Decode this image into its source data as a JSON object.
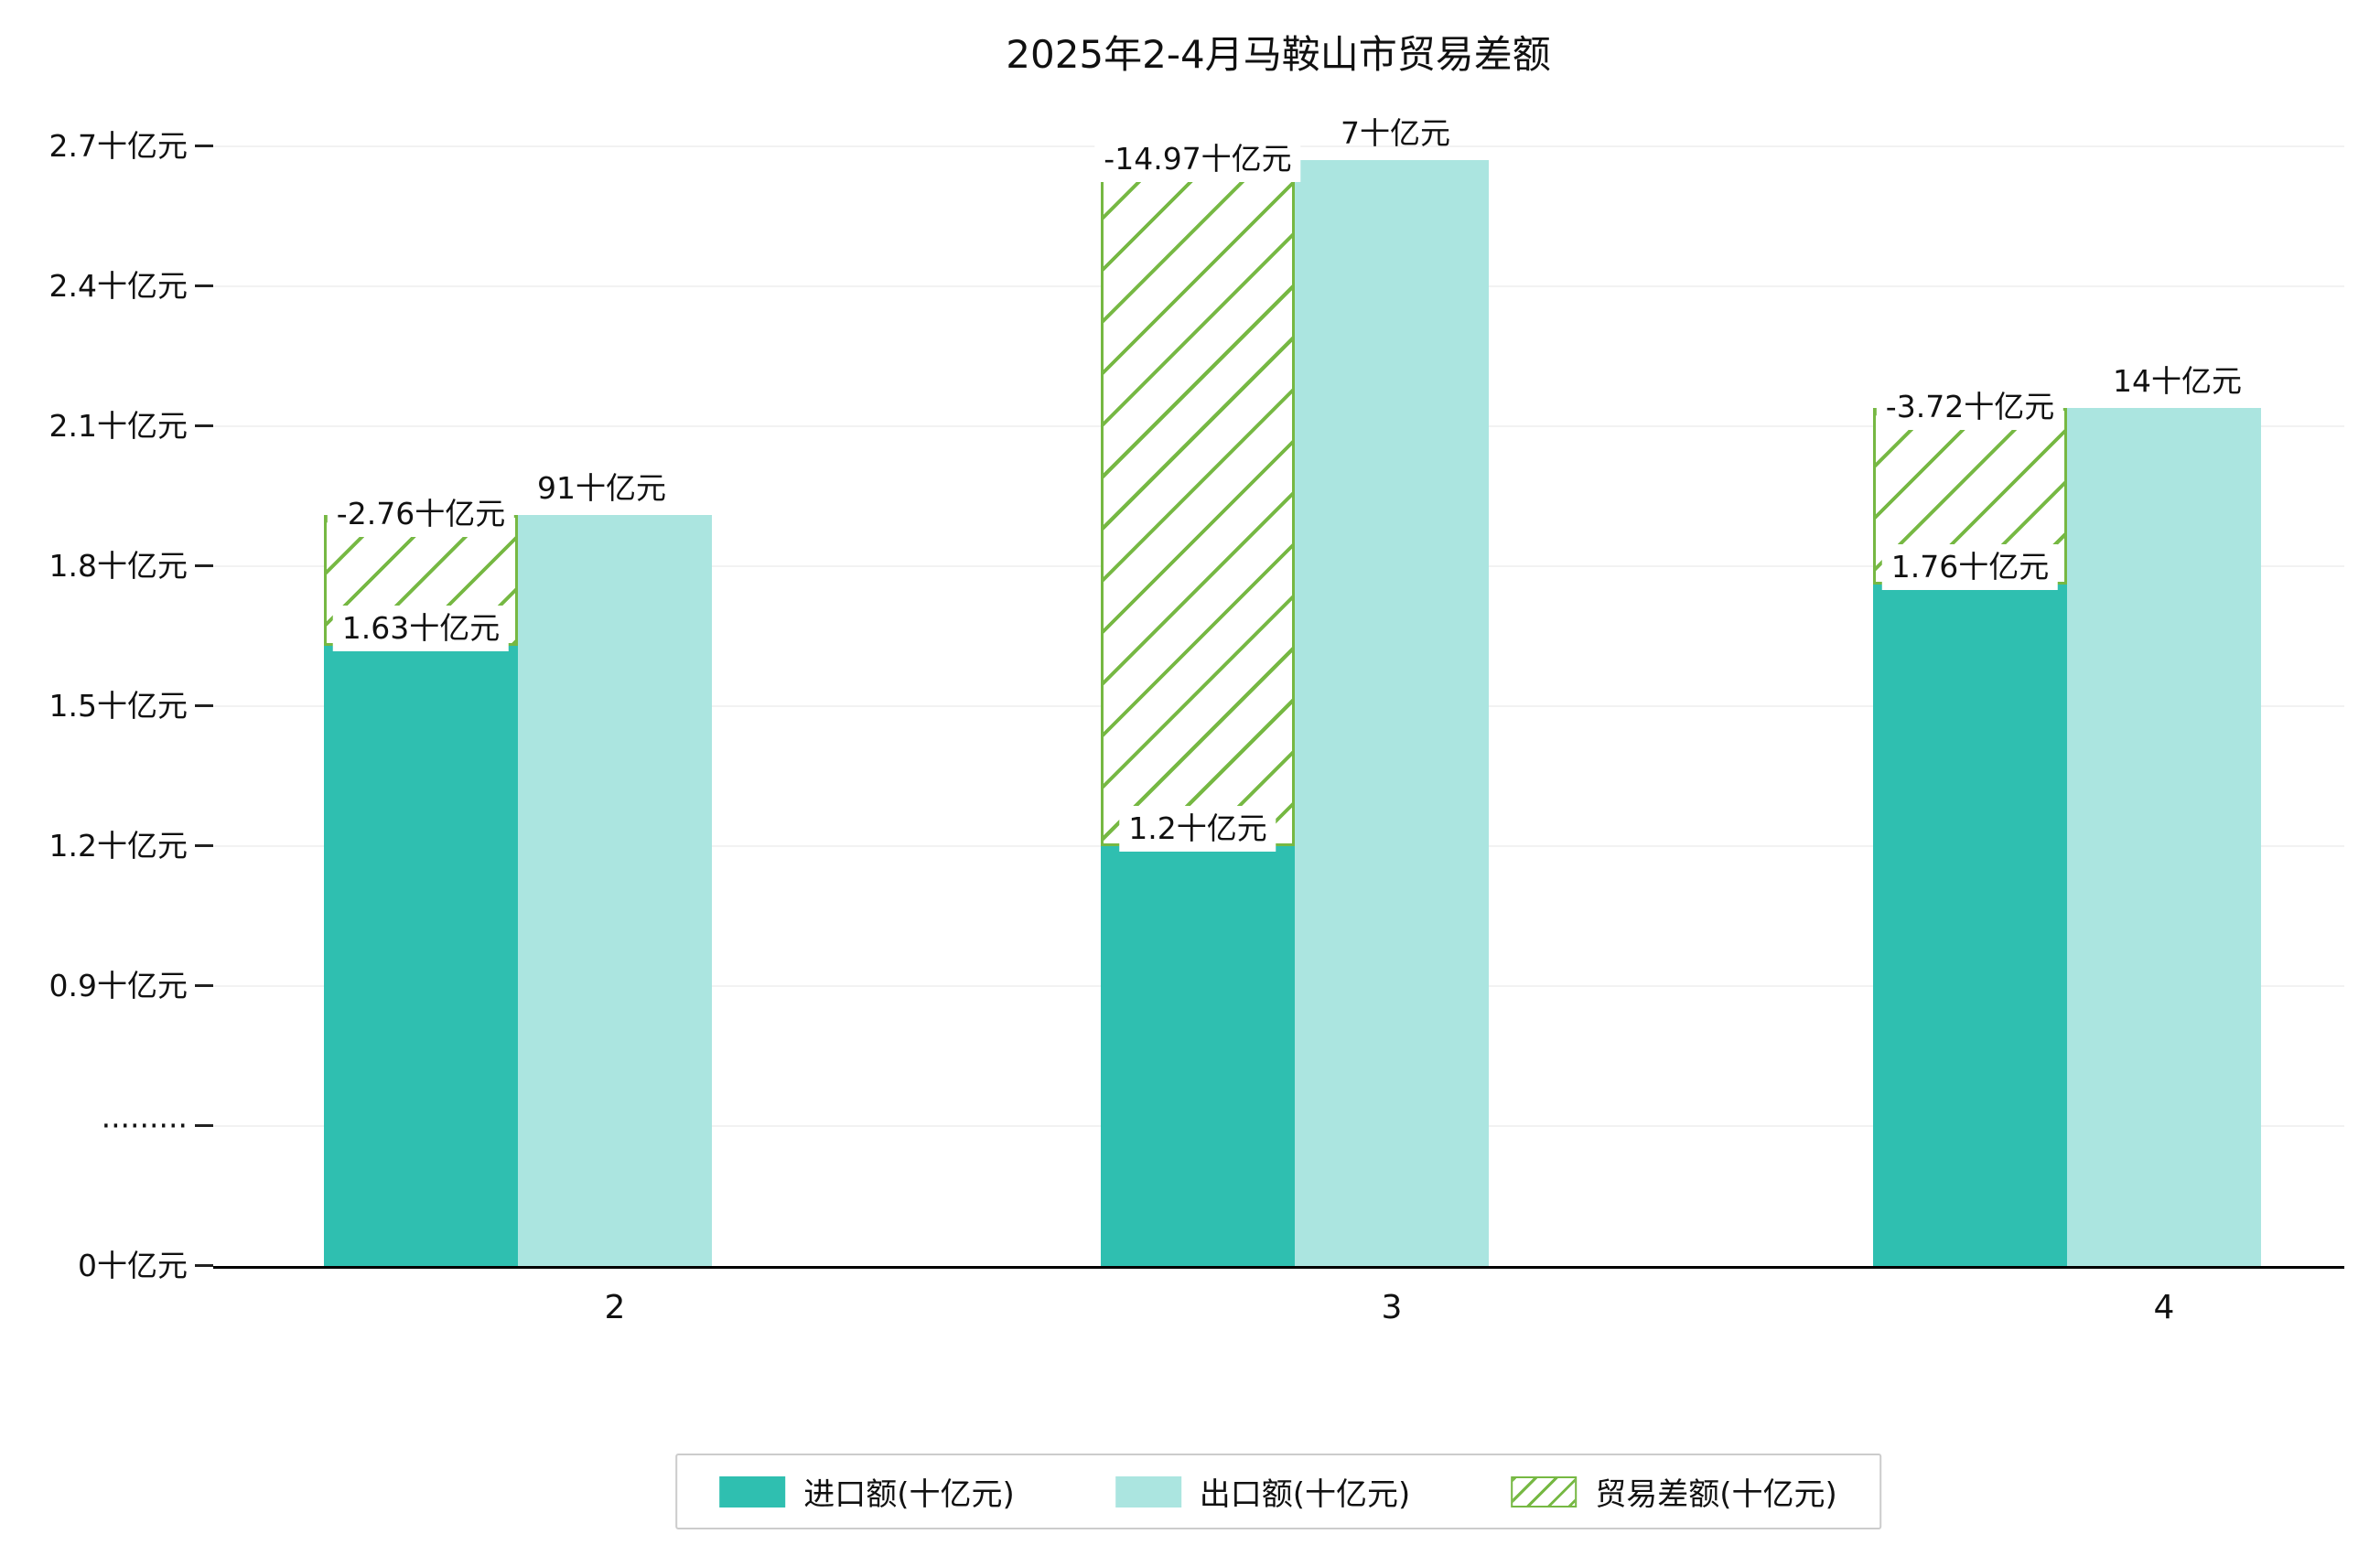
{
  "chart_data": {
    "type": "bar",
    "title": "2025年2-4月马鞍山市贸易差额",
    "unit": "十亿元",
    "categories": [
      "2",
      "3",
      "4"
    ],
    "series": [
      {
        "name": "进口额(十亿元)",
        "values": [
          1.63,
          1.2,
          1.76
        ],
        "bar_labels": [
          "1.63十亿元",
          "1.2十亿元",
          "1.76十亿元"
        ],
        "color": "#2fbfb0"
      },
      {
        "name": "出口额(十亿元)",
        "values": [
          1.91,
          2.67,
          2.14
        ],
        "bar_labels_visible": [
          "91十亿元",
          "7十亿元",
          "14十亿元"
        ],
        "color": "#abe5e0"
      },
      {
        "name": "贸易差额(十亿元)",
        "values": [
          -2.76,
          -14.97,
          -3.72
        ],
        "bar_labels": [
          "-2.76十亿元",
          "-14.97十亿元",
          "-3.72十亿元"
        ],
        "color": "#76b843",
        "style": "hatched"
      }
    ],
    "y_ticks": [
      {
        "label": "2.7十亿元",
        "value": 2.7
      },
      {
        "label": "2.4十亿元",
        "value": 2.4
      },
      {
        "label": "2.1十亿元",
        "value": 2.1
      },
      {
        "label": "1.8十亿元",
        "value": 1.8
      },
      {
        "label": "1.5十亿元",
        "value": 1.5
      },
      {
        "label": "1.2十亿元",
        "value": 1.2
      },
      {
        "label": "0.9十亿元",
        "value": 0.9
      },
      {
        "label": "·········",
        "value": null
      },
      {
        "label": "0十亿元",
        "value": 0
      }
    ],
    "axis_break": true,
    "grid": true,
    "legend_position": "bottom-center",
    "colors": {
      "axis": "#000000",
      "grid": "#f2f2f2",
      "label_text": "#111111"
    }
  }
}
